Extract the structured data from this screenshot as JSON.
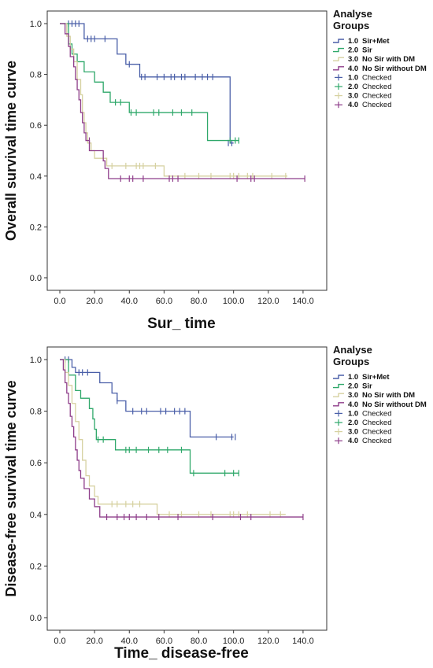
{
  "chart_data": [
    {
      "type": "line",
      "step": true,
      "ylabel": "Overall survival time curve",
      "xlabel": "Sur_ time",
      "xlim": [
        0,
        150
      ],
      "ylim": [
        0,
        1
      ],
      "xticks": [
        "0.0",
        "20.0",
        "40.0",
        "60.0",
        "80.0",
        "100.0",
        "120.0",
        "140.0"
      ],
      "yticks": [
        "0.0",
        "0.2",
        "0.4",
        "0.6",
        "0.8",
        "1.0"
      ],
      "grid": false,
      "legend": {
        "title_line1": "Analyse",
        "title_line2": "Groups",
        "placement": "right",
        "entries": [
          {
            "code": "1.0",
            "label": "Sir+Met",
            "kind": "line",
            "bold": true
          },
          {
            "code": "2.0",
            "label": "Sir",
            "kind": "line",
            "bold": true
          },
          {
            "code": "3.0",
            "label": "No Sir with DM",
            "kind": "line",
            "bold": true
          },
          {
            "code": "4.0",
            "label": "No Sir without DM",
            "kind": "line",
            "bold": true
          },
          {
            "code": "1.0",
            "label": "Checked",
            "kind": "censor",
            "bold": false
          },
          {
            "code": "2.0",
            "label": "Checked",
            "kind": "censor",
            "bold": false
          },
          {
            "code": "3.0",
            "label": "Checked",
            "kind": "censor",
            "bold": false
          },
          {
            "code": "4.0",
            "label": "Checked",
            "kind": "censor",
            "bold": false
          }
        ]
      },
      "series": [
        {
          "color": "#4a5fa8",
          "steps": [
            [
              0,
              1.0
            ],
            [
              14,
              0.94
            ],
            [
              25,
              0.94
            ],
            [
              33,
              0.88
            ],
            [
              38,
              0.84
            ],
            [
              46,
              0.79
            ],
            [
              98,
              0.79
            ],
            [
              98,
              0.53
            ],
            [
              100,
              0.53
            ]
          ],
          "censors": [
            [
              5,
              1.0
            ],
            [
              7,
              1.0
            ],
            [
              9,
              1.0
            ],
            [
              11,
              1.0
            ],
            [
              16,
              0.94
            ],
            [
              18,
              0.94
            ],
            [
              20,
              0.94
            ],
            [
              26,
              0.94
            ],
            [
              40,
              0.84
            ],
            [
              47,
              0.79
            ],
            [
              49,
              0.79
            ],
            [
              56,
              0.79
            ],
            [
              60,
              0.79
            ],
            [
              64,
              0.79
            ],
            [
              66,
              0.79
            ],
            [
              70,
              0.79
            ],
            [
              72,
              0.79
            ],
            [
              78,
              0.79
            ],
            [
              82,
              0.79
            ],
            [
              85,
              0.79
            ],
            [
              88,
              0.79
            ],
            [
              97,
              0.53
            ],
            [
              99,
              0.53
            ]
          ]
        },
        {
          "color": "#2fa86a",
          "steps": [
            [
              0,
              1.0
            ],
            [
              5,
              0.92
            ],
            [
              7,
              0.88
            ],
            [
              10,
              0.85
            ],
            [
              14,
              0.81
            ],
            [
              20,
              0.77
            ],
            [
              25,
              0.73
            ],
            [
              29,
              0.69
            ],
            [
              37,
              0.69
            ],
            [
              40,
              0.65
            ],
            [
              85,
              0.65
            ],
            [
              85,
              0.54
            ],
            [
              103,
              0.54
            ]
          ],
          "censors": [
            [
              32,
              0.69
            ],
            [
              35,
              0.69
            ],
            [
              41,
              0.65
            ],
            [
              44,
              0.65
            ],
            [
              54,
              0.65
            ],
            [
              57,
              0.65
            ],
            [
              65,
              0.65
            ],
            [
              70,
              0.65
            ],
            [
              76,
              0.65
            ],
            [
              98,
              0.54
            ],
            [
              101,
              0.54
            ],
            [
              103,
              0.54
            ]
          ]
        },
        {
          "color": "#d6d1a0",
          "steps": [
            [
              0,
              1.0
            ],
            [
              4,
              0.95
            ],
            [
              6,
              0.9
            ],
            [
              8,
              0.85
            ],
            [
              10,
              0.78
            ],
            [
              12,
              0.72
            ],
            [
              13,
              0.65
            ],
            [
              14,
              0.61
            ],
            [
              15,
              0.57
            ],
            [
              16,
              0.53
            ],
            [
              18,
              0.5
            ],
            [
              20,
              0.47
            ],
            [
              24,
              0.47
            ],
            [
              27,
              0.44
            ],
            [
              60,
              0.44
            ],
            [
              60,
              0.4
            ],
            [
              131,
              0.4
            ]
          ],
          "censors": [
            [
              30,
              0.44
            ],
            [
              38,
              0.44
            ],
            [
              44,
              0.44
            ],
            [
              46,
              0.44
            ],
            [
              48,
              0.44
            ],
            [
              55,
              0.44
            ],
            [
              72,
              0.4
            ],
            [
              80,
              0.4
            ],
            [
              87,
              0.4
            ],
            [
              98,
              0.4
            ],
            [
              100,
              0.4
            ],
            [
              103,
              0.4
            ],
            [
              108,
              0.4
            ],
            [
              111,
              0.4
            ],
            [
              122,
              0.4
            ],
            [
              130,
              0.4
            ]
          ]
        },
        {
          "color": "#8e3d8a",
          "steps": [
            [
              0,
              1.0
            ],
            [
              3,
              0.96
            ],
            [
              5,
              0.91
            ],
            [
              6,
              0.87
            ],
            [
              8,
              0.83
            ],
            [
              9,
              0.78
            ],
            [
              10,
              0.74
            ],
            [
              11,
              0.7
            ],
            [
              12,
              0.65
            ],
            [
              13,
              0.61
            ],
            [
              14,
              0.57
            ],
            [
              15,
              0.54
            ],
            [
              17,
              0.5
            ],
            [
              25,
              0.5
            ],
            [
              25,
              0.46
            ],
            [
              26,
              0.43
            ],
            [
              28,
              0.39
            ],
            [
              141,
              0.39
            ]
          ],
          "censors": [
            [
              17,
              0.54
            ],
            [
              35,
              0.39
            ],
            [
              40,
              0.39
            ],
            [
              42,
              0.39
            ],
            [
              48,
              0.39
            ],
            [
              63,
              0.39
            ],
            [
              65,
              0.39
            ],
            [
              68,
              0.39
            ],
            [
              102,
              0.39
            ],
            [
              110,
              0.39
            ],
            [
              112,
              0.39
            ],
            [
              141,
              0.39
            ]
          ]
        }
      ]
    },
    {
      "type": "line",
      "step": true,
      "ylabel": "Disease-free survival time curve",
      "xlabel": "Time_ disease-free",
      "xlim": [
        0,
        150
      ],
      "ylim": [
        0,
        1
      ],
      "xticks": [
        "0.0",
        "20.0",
        "40.0",
        "60.0",
        "80.0",
        "100.0",
        "120.0",
        "140.0"
      ],
      "yticks": [
        "0.0",
        "0.2",
        "0.4",
        "0.6",
        "0.8",
        "1.0"
      ],
      "grid": false,
      "legend": {
        "title_line1": "Analyse",
        "title_line2": "Groups",
        "placement": "right",
        "entries": [
          {
            "code": "1.0",
            "label": "Sir+Met",
            "kind": "line",
            "bold": true
          },
          {
            "code": "2.0",
            "label": "Sir",
            "kind": "line",
            "bold": true
          },
          {
            "code": "3.0",
            "label": "No Sir with DM",
            "kind": "line",
            "bold": true
          },
          {
            "code": "4.0",
            "label": "No Sir without DM",
            "kind": "line",
            "bold": true
          },
          {
            "code": "1.0",
            "label": "Checked",
            "kind": "censor",
            "bold": false
          },
          {
            "code": "2.0",
            "label": "Checked",
            "kind": "censor",
            "bold": false
          },
          {
            "code": "3.0",
            "label": "Checked",
            "kind": "censor",
            "bold": false
          },
          {
            "code": "4.0",
            "label": "Checked",
            "kind": "censor",
            "bold": false
          }
        ]
      },
      "series": [
        {
          "color": "#4a5fa8",
          "steps": [
            [
              0,
              1.0
            ],
            [
              7,
              0.97
            ],
            [
              9,
              0.95
            ],
            [
              20,
              0.95
            ],
            [
              23,
              0.91
            ],
            [
              30,
              0.87
            ],
            [
              33,
              0.84
            ],
            [
              38,
              0.8
            ],
            [
              75,
              0.8
            ],
            [
              75,
              0.7
            ],
            [
              100,
              0.7
            ]
          ],
          "censors": [
            [
              3,
              1.0
            ],
            [
              5,
              1.0
            ],
            [
              11,
              0.95
            ],
            [
              13,
              0.95
            ],
            [
              16,
              0.95
            ],
            [
              33,
              0.84
            ],
            [
              42,
              0.8
            ],
            [
              47,
              0.8
            ],
            [
              50,
              0.8
            ],
            [
              58,
              0.8
            ],
            [
              61,
              0.8
            ],
            [
              66,
              0.8
            ],
            [
              69,
              0.8
            ],
            [
              72,
              0.8
            ],
            [
              90,
              0.7
            ],
            [
              99,
              0.7
            ],
            [
              101,
              0.7
            ]
          ]
        },
        {
          "color": "#2fa86a",
          "steps": [
            [
              0,
              1.0
            ],
            [
              5,
              0.94
            ],
            [
              9,
              0.88
            ],
            [
              12,
              0.85
            ],
            [
              17,
              0.81
            ],
            [
              19,
              0.77
            ],
            [
              20,
              0.73
            ],
            [
              21,
              0.69
            ],
            [
              30,
              0.69
            ],
            [
              32,
              0.65
            ],
            [
              75,
              0.65
            ],
            [
              75,
              0.56
            ],
            [
              103,
              0.56
            ]
          ],
          "censors": [
            [
              22,
              0.69
            ],
            [
              25,
              0.69
            ],
            [
              38,
              0.65
            ],
            [
              40,
              0.65
            ],
            [
              44,
              0.65
            ],
            [
              51,
              0.65
            ],
            [
              57,
              0.65
            ],
            [
              62,
              0.65
            ],
            [
              70,
              0.65
            ],
            [
              77,
              0.56
            ],
            [
              95,
              0.56
            ],
            [
              100,
              0.56
            ],
            [
              103,
              0.56
            ]
          ]
        },
        {
          "color": "#d6d1a0",
          "steps": [
            [
              0,
              1.0
            ],
            [
              3,
              0.95
            ],
            [
              5,
              0.9
            ],
            [
              7,
              0.83
            ],
            [
              9,
              0.76
            ],
            [
              11,
              0.69
            ],
            [
              13,
              0.61
            ],
            [
              15,
              0.55
            ],
            [
              17,
              0.51
            ],
            [
              20,
              0.47
            ],
            [
              22,
              0.44
            ],
            [
              56,
              0.44
            ],
            [
              56,
              0.4
            ],
            [
              130,
              0.4
            ]
          ],
          "censors": [
            [
              30,
              0.44
            ],
            [
              33,
              0.44
            ],
            [
              38,
              0.44
            ],
            [
              42,
              0.44
            ],
            [
              46,
              0.44
            ],
            [
              63,
              0.4
            ],
            [
              70,
              0.4
            ],
            [
              80,
              0.4
            ],
            [
              87,
              0.4
            ],
            [
              98,
              0.4
            ],
            [
              100,
              0.4
            ],
            [
              103,
              0.4
            ],
            [
              108,
              0.4
            ],
            [
              121,
              0.4
            ],
            [
              127,
              0.4
            ]
          ]
        },
        {
          "color": "#8e3d8a",
          "steps": [
            [
              0,
              1.0
            ],
            [
              2,
              0.96
            ],
            [
              3,
              0.91
            ],
            [
              4,
              0.87
            ],
            [
              5,
              0.83
            ],
            [
              6,
              0.78
            ],
            [
              7,
              0.74
            ],
            [
              8,
              0.7
            ],
            [
              9,
              0.65
            ],
            [
              10,
              0.61
            ],
            [
              11,
              0.57
            ],
            [
              12,
              0.54
            ],
            [
              14,
              0.5
            ],
            [
              17,
              0.46
            ],
            [
              20,
              0.43
            ],
            [
              23,
              0.39
            ],
            [
              140,
              0.39
            ]
          ],
          "censors": [
            [
              27,
              0.39
            ],
            [
              33,
              0.39
            ],
            [
              37,
              0.39
            ],
            [
              40,
              0.39
            ],
            [
              44,
              0.39
            ],
            [
              50,
              0.39
            ],
            [
              57,
              0.39
            ],
            [
              68,
              0.39
            ],
            [
              88,
              0.39
            ],
            [
              104,
              0.39
            ],
            [
              110,
              0.39
            ],
            [
              140,
              0.39
            ]
          ]
        }
      ]
    }
  ]
}
